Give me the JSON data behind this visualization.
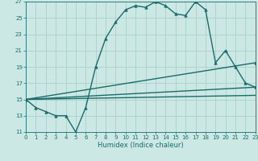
{
  "xlabel": "Humidex (Indice chaleur)",
  "bg_color": "#cce8e4",
  "grid_color": "#aacfcb",
  "line_color": "#1a6b6b",
  "ylim": [
    11,
    27
  ],
  "xlim": [
    0,
    23
  ],
  "yticks": [
    11,
    13,
    15,
    17,
    19,
    21,
    23,
    25,
    27
  ],
  "xticks": [
    0,
    1,
    2,
    3,
    4,
    5,
    6,
    7,
    8,
    9,
    10,
    11,
    12,
    13,
    14,
    15,
    16,
    17,
    18,
    19,
    20,
    21,
    22,
    23
  ],
  "series1_x": [
    0,
    1,
    2,
    3,
    4,
    5,
    6,
    7,
    8,
    9,
    10,
    11,
    12,
    13,
    14,
    15,
    16,
    17,
    18,
    19,
    20,
    21,
    22,
    23
  ],
  "series1_y": [
    15.0,
    14.0,
    13.5,
    13.0,
    13.0,
    11.0,
    14.0,
    19.0,
    22.5,
    24.5,
    26.0,
    26.5,
    26.3,
    27.0,
    26.5,
    25.5,
    25.3,
    27.0,
    26.0,
    19.5,
    21.0,
    19.0,
    17.0,
    16.5
  ],
  "series2_x": [
    0,
    23
  ],
  "series2_y": [
    15.0,
    16.5
  ],
  "series3_x": [
    0,
    23
  ],
  "series3_y": [
    15.0,
    15.5
  ],
  "series4_x": [
    0,
    23
  ],
  "series4_y": [
    15.0,
    19.5
  ],
  "marker": "^",
  "markersize": 2.5,
  "linewidth": 1.0
}
